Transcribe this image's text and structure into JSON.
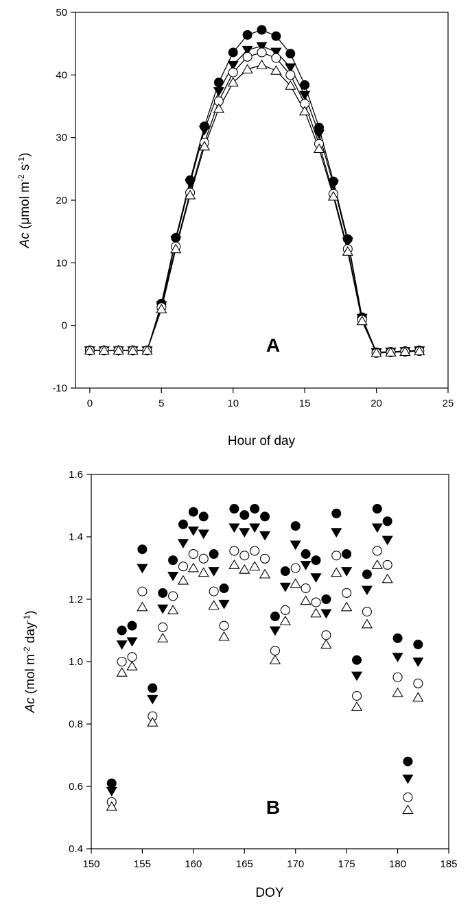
{
  "chart_data": [
    {
      "type": "line",
      "panel_label": "A",
      "xlabel": "Hour of day",
      "ylabel_main": "Ac",
      "ylabel_unit": " (μmol m",
      "ylabel_sup1": "-2",
      "ylabel_mid": " s",
      "ylabel_sup2": "-1",
      "ylabel_end": ")",
      "xlim": [
        -1,
        25
      ],
      "ylim": [
        -10,
        50
      ],
      "xticks": [
        0,
        5,
        10,
        15,
        20,
        25
      ],
      "yticks": [
        -10,
        0,
        10,
        20,
        30,
        40,
        50
      ],
      "grid": false,
      "x": [
        0,
        1,
        2,
        3,
        4,
        5,
        6,
        7,
        8,
        9,
        10,
        11,
        12,
        13,
        14,
        15,
        16,
        17,
        18,
        19,
        20,
        21,
        22,
        23
      ],
      "series": [
        {
          "marker": "filled-circle",
          "values": [
            -4,
            -4,
            -4,
            -4,
            -4,
            3.5,
            14,
            23.2,
            31.8,
            38.8,
            43.6,
            46.4,
            47.2,
            46.2,
            43.4,
            38.4,
            31.6,
            23,
            13.8,
            1.3,
            -4.3,
            -4.2,
            -4.1,
            -4
          ]
        },
        {
          "marker": "filled-triangle-down",
          "values": [
            -4,
            -4,
            -4,
            -4,
            -4,
            3.2,
            13.6,
            22.7,
            31.2,
            37.4,
            41.6,
            44,
            44.6,
            43.7,
            41.2,
            36.8,
            30.6,
            22.5,
            13.4,
            1.2,
            -4.3,
            -4.2,
            -4.1,
            -4
          ]
        },
        {
          "marker": "open-circle",
          "values": [
            -4,
            -4,
            -4,
            -4,
            -4,
            2.9,
            12.6,
            21.2,
            29.2,
            35.8,
            40.4,
            42.9,
            43.6,
            42.7,
            40,
            35.4,
            29,
            21,
            12.2,
            0.9,
            -4.4,
            -4.3,
            -4.2,
            -4.1
          ]
        },
        {
          "marker": "open-triangle-up",
          "values": [
            -4,
            -4,
            -4,
            -4,
            -4,
            2.6,
            12.2,
            20.8,
            28.6,
            34.6,
            38.8,
            40.9,
            41.6,
            40.7,
            38.3,
            34.2,
            28.2,
            20.6,
            11.8,
            0.7,
            -4.4,
            -4.3,
            -4.2,
            -4.1
          ]
        }
      ]
    },
    {
      "type": "scatter",
      "panel_label": "B",
      "xlabel": "DOY",
      "ylabel_main": "Ac",
      "ylabel_unit": " (mol m",
      "ylabel_sup1": "-2",
      "ylabel_mid": " day",
      "ylabel_sup2": "-1",
      "ylabel_end": ")",
      "xlim": [
        150,
        185
      ],
      "ylim": [
        0.4,
        1.6
      ],
      "xticks": [
        150,
        155,
        160,
        165,
        170,
        175,
        180,
        185
      ],
      "yticks": [
        0.4,
        0.6,
        0.8,
        1.0,
        1.2,
        1.4,
        1.6
      ],
      "ytick_labels": [
        "0.4",
        "0.6",
        "0.8",
        "1.0",
        "1.2",
        "1.4",
        "1.6"
      ],
      "grid": false,
      "x": [
        152,
        153,
        154,
        155,
        156,
        157,
        158,
        159,
        160,
        161,
        162,
        163,
        164,
        165,
        166,
        167,
        168,
        169,
        170,
        171,
        172,
        173,
        174,
        175,
        176,
        177,
        178,
        179,
        180,
        181,
        182
      ],
      "series": [
        {
          "marker": "filled-circle",
          "values": [
            0.61,
            1.1,
            1.115,
            1.36,
            0.915,
            1.22,
            1.325,
            1.44,
            1.48,
            1.465,
            1.345,
            1.235,
            1.49,
            1.47,
            1.49,
            1.465,
            1.145,
            1.29,
            1.435,
            1.345,
            1.325,
            1.2,
            1.475,
            1.345,
            1.005,
            1.28,
            1.49,
            1.45,
            1.075,
            0.68,
            1.055
          ]
        },
        {
          "marker": "filled-triangle-down",
          "values": [
            0.585,
            1.055,
            1.065,
            1.3,
            0.88,
            1.17,
            1.275,
            1.38,
            1.42,
            1.41,
            1.29,
            1.185,
            1.43,
            1.415,
            1.43,
            1.405,
            1.1,
            1.24,
            1.375,
            1.31,
            1.27,
            1.155,
            1.415,
            1.29,
            0.955,
            1.23,
            1.43,
            1.39,
            1.015,
            0.625,
            1.0
          ]
        },
        {
          "marker": "open-circle",
          "values": [
            0.55,
            1.0,
            1.015,
            1.225,
            0.825,
            1.11,
            1.21,
            1.305,
            1.345,
            1.33,
            1.225,
            1.115,
            1.355,
            1.34,
            1.355,
            1.33,
            1.035,
            1.165,
            1.3,
            1.235,
            1.19,
            1.085,
            1.34,
            1.22,
            0.89,
            1.16,
            1.355,
            1.31,
            0.95,
            0.565,
            0.93
          ]
        },
        {
          "marker": "open-triangle-up",
          "values": [
            0.535,
            0.965,
            0.985,
            1.175,
            0.805,
            1.075,
            1.165,
            1.26,
            1.3,
            1.285,
            1.18,
            1.08,
            1.31,
            1.295,
            1.305,
            1.28,
            1.005,
            1.13,
            1.25,
            1.195,
            1.155,
            1.055,
            1.285,
            1.175,
            0.855,
            1.12,
            1.31,
            1.265,
            0.9,
            0.525,
            0.885
          ]
        }
      ]
    }
  ]
}
